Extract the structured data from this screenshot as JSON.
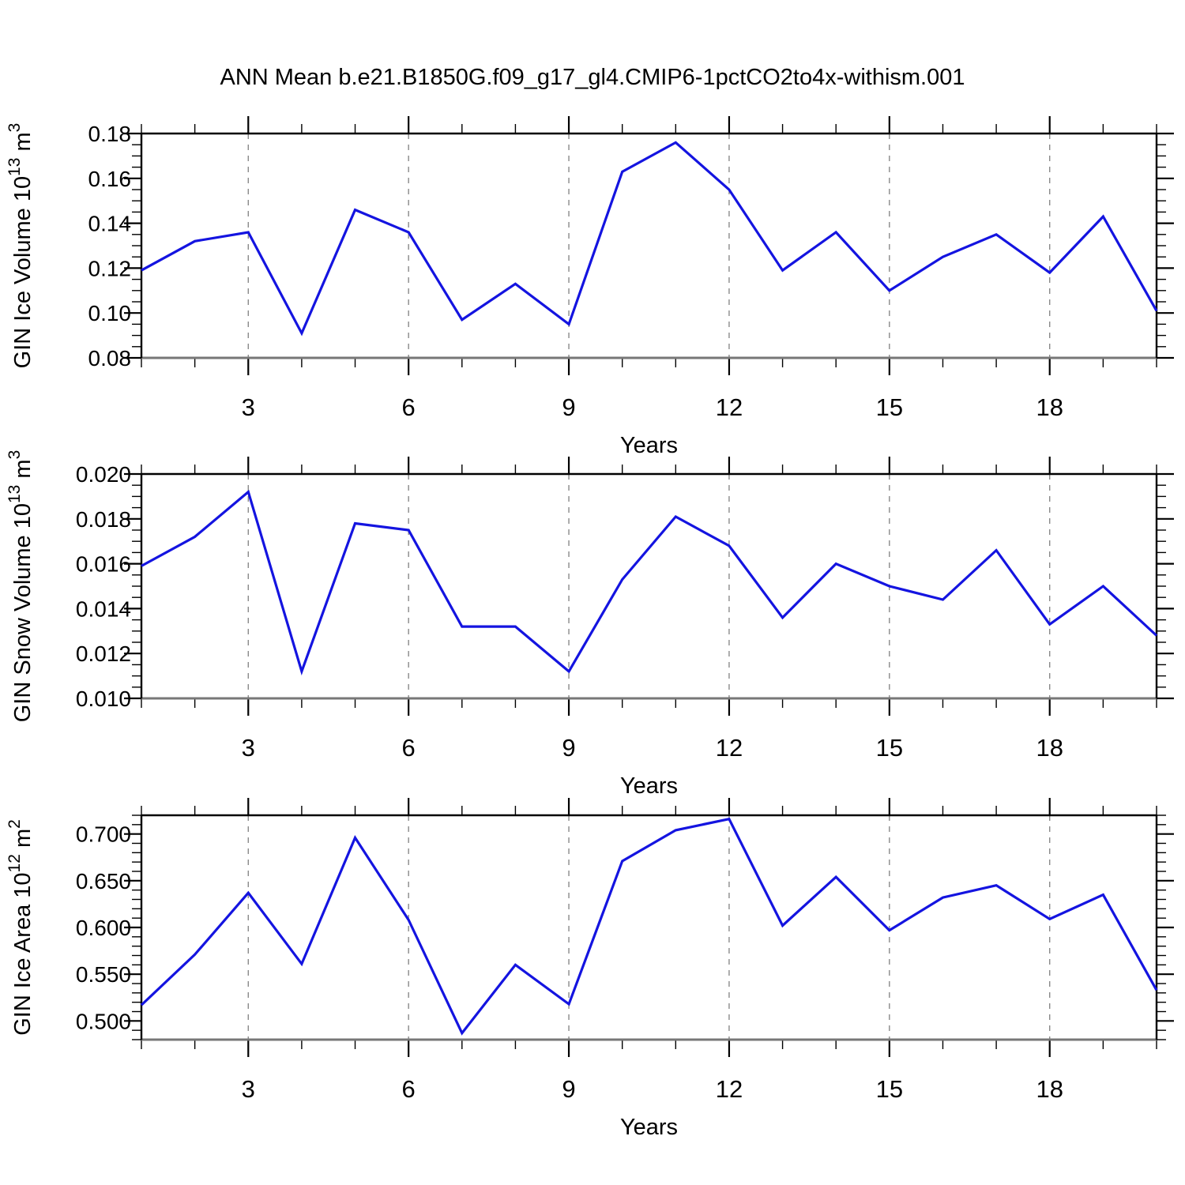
{
  "title": "ANN Mean b.e21.B1850G.f09_g17_gl4.CMIP6-1pctCO2to4x-withism.001",
  "style": {
    "line_color": "#1414e0",
    "grid_color": "#808080",
    "axis_color": "#000000",
    "bottom_axis_color": "#777777",
    "text_color": "#000000"
  },
  "x_axis": {
    "label": "Years",
    "range": [
      1,
      20
    ],
    "major_ticks": [
      3,
      6,
      9,
      12,
      15,
      18
    ],
    "minor_step": 1
  },
  "chart_data": [
    {
      "type": "line",
      "name": "gin-ice-volume",
      "ylabel_plain": "GIN Ice Volume 10^13 m^3",
      "ylabel_parts": [
        {
          "t": "GIN Ice Volume 10"
        },
        {
          "t": "13",
          "sup": true
        },
        {
          "t": " m"
        },
        {
          "t": "3",
          "sup": true
        }
      ],
      "xlabel": "Years",
      "x": [
        1,
        2,
        3,
        4,
        5,
        6,
        7,
        8,
        9,
        10,
        11,
        12,
        13,
        14,
        15,
        16,
        17,
        18,
        19,
        20
      ],
      "values": [
        0.119,
        0.132,
        0.136,
        0.091,
        0.146,
        0.136,
        0.097,
        0.113,
        0.095,
        0.163,
        0.176,
        0.155,
        0.119,
        0.136,
        0.11,
        0.125,
        0.135,
        0.118,
        0.143,
        0.101
      ],
      "ylim": [
        0.08,
        0.18
      ],
      "ytick_step": 0.02,
      "yminor_step": 0.005,
      "ytick_decimals": 2,
      "ytick_labels": [
        "0.08",
        "0.10",
        "0.12",
        "0.14",
        "0.16",
        "0.18"
      ],
      "grid": "vertical-dashed",
      "legend": "none"
    },
    {
      "type": "line",
      "name": "gin-snow-volume",
      "ylabel_plain": "GIN Snow Volume 10^13 m^3",
      "ylabel_parts": [
        {
          "t": "GIN Snow Volume 10"
        },
        {
          "t": "13",
          "sup": true
        },
        {
          "t": " m"
        },
        {
          "t": "3",
          "sup": true
        }
      ],
      "xlabel": "Years",
      "x": [
        1,
        2,
        3,
        4,
        5,
        6,
        7,
        8,
        9,
        10,
        11,
        12,
        13,
        14,
        15,
        16,
        17,
        18,
        19,
        20
      ],
      "values": [
        0.0159,
        0.0172,
        0.0192,
        0.0112,
        0.0178,
        0.0175,
        0.0132,
        0.0132,
        0.0112,
        0.0153,
        0.0181,
        0.0168,
        0.0136,
        0.016,
        0.015,
        0.0144,
        0.0166,
        0.0133,
        0.015,
        0.0128
      ],
      "ylim": [
        0.01,
        0.02
      ],
      "ytick_step": 0.002,
      "yminor_step": 0.0005,
      "ytick_decimals": 3,
      "ytick_labels": [
        "0.010",
        "0.012",
        "0.014",
        "0.016",
        "0.018",
        "0.020"
      ],
      "grid": "vertical-dashed",
      "legend": "none"
    },
    {
      "type": "line",
      "name": "gin-ice-area",
      "ylabel_plain": "GIN Ice Area 10^12 m^2",
      "ylabel_parts": [
        {
          "t": "GIN Ice Area 10"
        },
        {
          "t": "12",
          "sup": true
        },
        {
          "t": " m"
        },
        {
          "t": "2",
          "sup": true
        }
      ],
      "xlabel": "Years",
      "x": [
        1,
        2,
        3,
        4,
        5,
        6,
        7,
        8,
        9,
        10,
        11,
        12,
        13,
        14,
        15,
        16,
        17,
        18,
        19,
        20
      ],
      "values": [
        0.517,
        0.571,
        0.637,
        0.561,
        0.696,
        0.608,
        0.487,
        0.56,
        0.518,
        0.671,
        0.704,
        0.716,
        0.602,
        0.654,
        0.597,
        0.632,
        0.645,
        0.609,
        0.635,
        0.533
      ],
      "ylim": [
        0.48,
        0.72
      ],
      "ytick_step": 0.05,
      "yminor_step": 0.01,
      "ytick_decimals": 3,
      "ytick_labels": [
        "0.500",
        "0.550",
        "0.600",
        "0.650",
        "0.700"
      ],
      "grid": "vertical-dashed",
      "legend": "none"
    }
  ]
}
